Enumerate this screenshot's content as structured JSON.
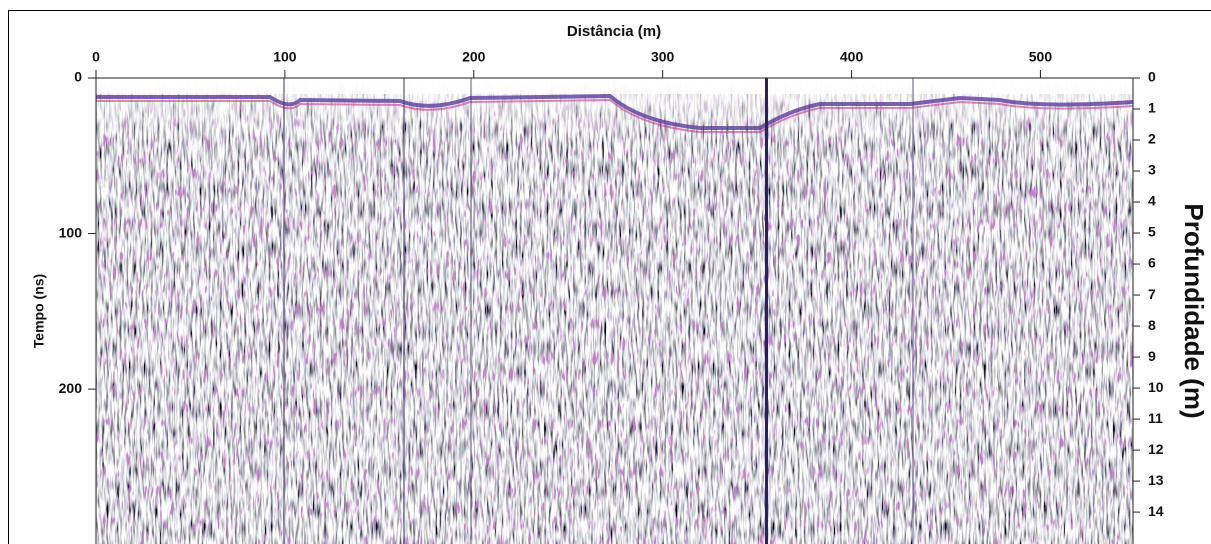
{
  "chart_data": {
    "type": "radargram",
    "x_label": "Distância (m)",
    "y_label": "Tempo (ns)",
    "y2_label": "Profundidade (m)",
    "xlim": [
      0,
      549
    ],
    "xticks": [
      0,
      100,
      200,
      300,
      400,
      500
    ],
    "ylim": [
      0,
      297
    ],
    "yticks": [
      0,
      100,
      200
    ],
    "y2lim": [
      0,
      14.9
    ],
    "y2ticks": [
      0,
      1,
      2,
      3,
      4,
      5,
      6,
      7,
      8,
      9,
      10,
      11,
      12,
      13,
      14
    ]
  }
}
